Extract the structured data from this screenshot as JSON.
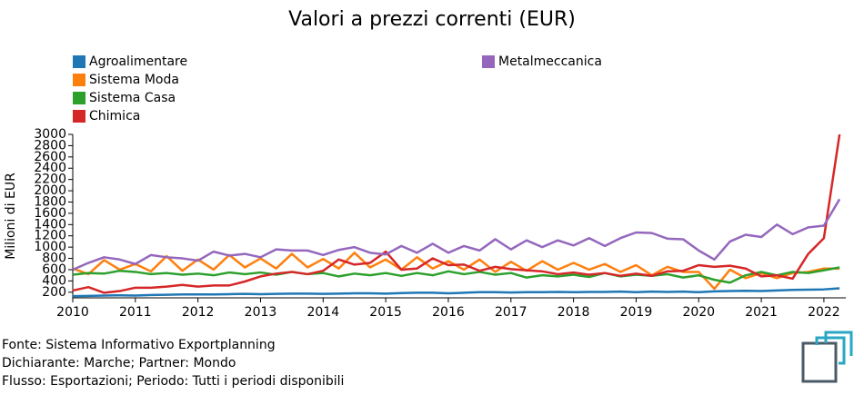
{
  "chart_data": {
    "type": "line",
    "title": "Valori a prezzi correnti (EUR)",
    "y_label": "Milioni di EUR",
    "x": [
      2010,
      2010.25,
      2010.5,
      2010.75,
      2011,
      2011.25,
      2011.5,
      2011.75,
      2012,
      2012.25,
      2012.5,
      2012.75,
      2013,
      2013.25,
      2013.5,
      2013.75,
      2014,
      2014.25,
      2014.5,
      2014.75,
      2015,
      2015.25,
      2015.5,
      2015.75,
      2016,
      2016.25,
      2016.5,
      2016.75,
      2017,
      2017.25,
      2017.5,
      2017.75,
      2018,
      2018.25,
      2018.5,
      2018.75,
      2019,
      2019.25,
      2019.5,
      2019.75,
      2020,
      2020.25,
      2020.5,
      2020.75,
      2021,
      2021.25,
      2021.5,
      2021.75,
      2022,
      2022.25
    ],
    "series": [
      {
        "name": "Agroalimentare",
        "color": "#1f77b4",
        "values": [
          130,
          135,
          140,
          145,
          140,
          150,
          155,
          160,
          160,
          160,
          165,
          170,
          165,
          170,
          175,
          175,
          170,
          175,
          180,
          180,
          175,
          185,
          190,
          190,
          180,
          190,
          200,
          200,
          195,
          200,
          200,
          205,
          200,
          205,
          205,
          210,
          200,
          210,
          205,
          210,
          200,
          215,
          220,
          225,
          220,
          230,
          240,
          245,
          250,
          270
        ]
      },
      {
        "name": "Sistema Moda",
        "color": "#ff7f0e",
        "values": [
          620,
          520,
          770,
          600,
          700,
          570,
          840,
          580,
          780,
          600,
          860,
          640,
          800,
          620,
          880,
          640,
          790,
          620,
          900,
          640,
          780,
          600,
          820,
          620,
          750,
          600,
          780,
          560,
          740,
          580,
          750,
          600,
          720,
          600,
          700,
          560,
          680,
          500,
          650,
          560,
          560,
          260,
          600,
          450,
          540,
          450,
          540,
          560,
          620,
          620
        ]
      },
      {
        "name": "Sistema Casa",
        "color": "#2ca02c",
        "values": [
          510,
          540,
          530,
          580,
          560,
          520,
          540,
          510,
          530,
          500,
          550,
          520,
          550,
          510,
          560,
          520,
          540,
          480,
          530,
          500,
          540,
          490,
          540,
          500,
          570,
          520,
          560,
          510,
          540,
          460,
          500,
          480,
          510,
          470,
          540,
          480,
          510,
          490,
          520,
          460,
          500,
          420,
          370,
          500,
          560,
          500,
          560,
          540,
          590,
          640
        ]
      },
      {
        "name": "Chimica",
        "color": "#d62728",
        "values": [
          230,
          290,
          190,
          220,
          280,
          280,
          300,
          330,
          300,
          320,
          320,
          390,
          480,
          530,
          560,
          520,
          580,
          780,
          690,
          720,
          920,
          600,
          620,
          800,
          680,
          690,
          580,
          650,
          610,
          590,
          570,
          520,
          550,
          510,
          540,
          490,
          530,
          490,
          570,
          580,
          680,
          650,
          670,
          620,
          480,
          500,
          440,
          880,
          1160,
          3000
        ]
      },
      {
        "name": "Metalmeccanica",
        "color": "#9467bd",
        "values": [
          600,
          720,
          820,
          780,
          700,
          860,
          820,
          800,
          760,
          920,
          850,
          880,
          820,
          960,
          940,
          940,
          860,
          950,
          1000,
          900,
          870,
          1020,
          900,
          1060,
          900,
          1020,
          940,
          1140,
          960,
          1120,
          1000,
          1120,
          1030,
          1160,
          1020,
          1160,
          1260,
          1250,
          1150,
          1140,
          940,
          780,
          1100,
          1220,
          1180,
          1400,
          1230,
          1350,
          1380,
          1850
        ]
      }
    ],
    "xlim": [
      2010,
      2022.35
    ],
    "xticks": [
      2010,
      2011,
      2012,
      2013,
      2014,
      2015,
      2016,
      2017,
      2018,
      2019,
      2020,
      2021,
      2022
    ],
    "ylim": [
      100,
      3000
    ],
    "yticks": [
      200,
      400,
      600,
      800,
      1000,
      1200,
      1400,
      1600,
      1800,
      2000,
      2200,
      2400,
      2600,
      2800,
      3000
    ],
    "footer": [
      "Fonte: Sistema Informativo Exportplanning",
      "Dichiarante: Marche; Partner: Mondo",
      "Flusso: Esportazioni; Periodo: Tutti i periodi disponibili"
    ]
  }
}
